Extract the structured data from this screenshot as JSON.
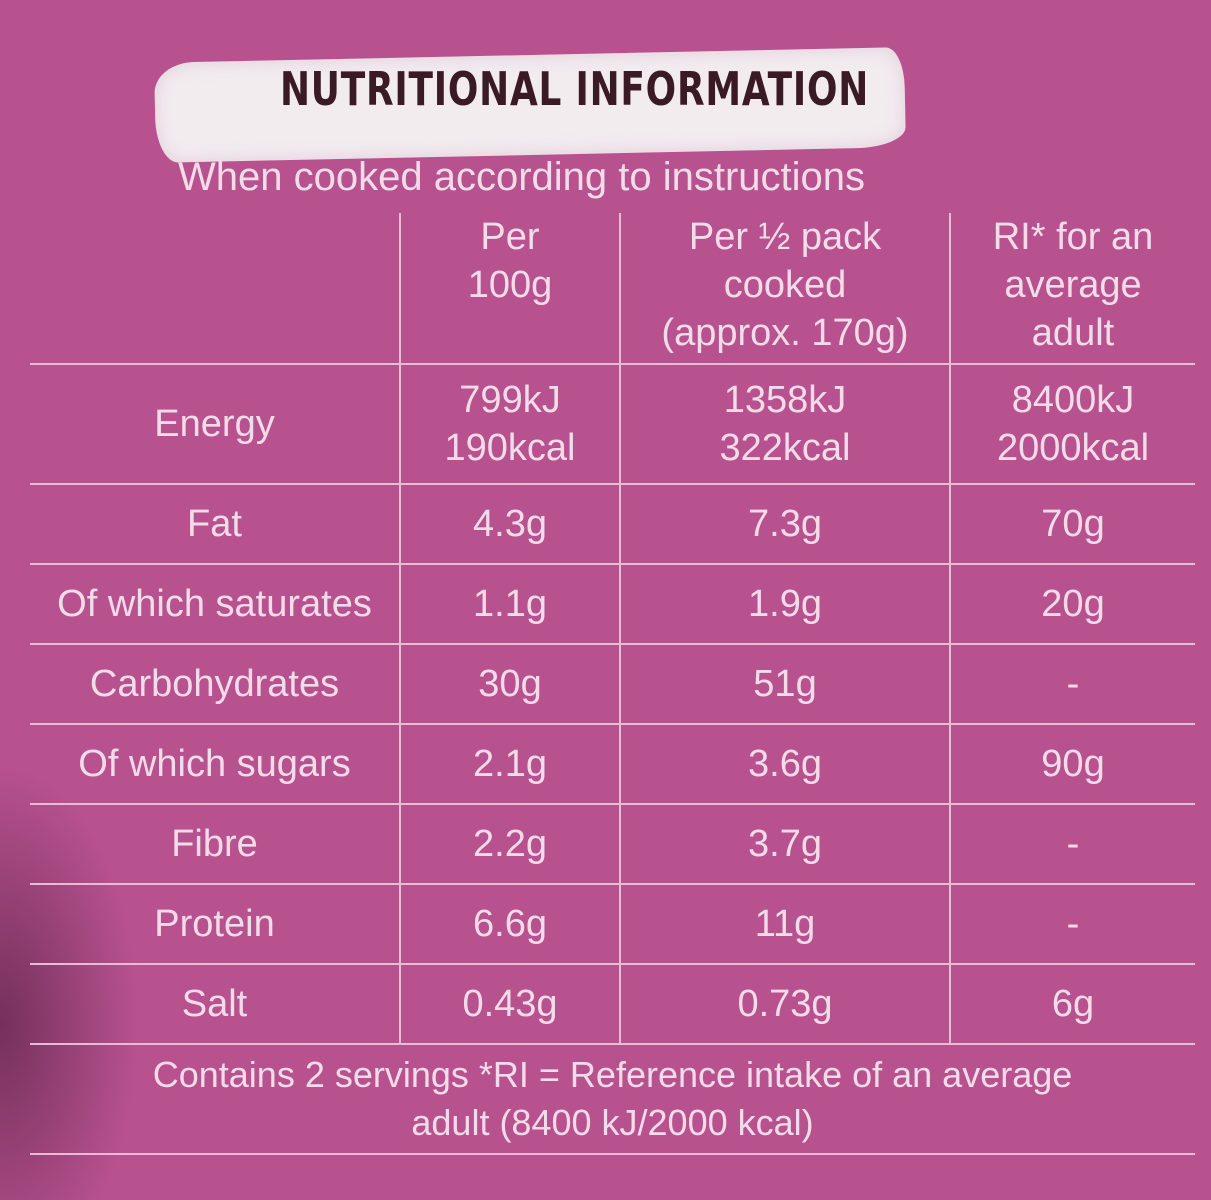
{
  "header": {
    "title": "NUTRITIONAL INFORMATION",
    "subtitle": "When cooked according to instructions"
  },
  "columns": [
    {
      "line1": "Per",
      "line2": "100g",
      "line3": ""
    },
    {
      "line1": "Per ½ pack",
      "line2": "cooked",
      "line3": "(approx. 170g)"
    },
    {
      "line1": "RI* for an",
      "line2": "average",
      "line3": "adult"
    }
  ],
  "energy": {
    "label": "Energy",
    "per100": {
      "kj": "799kJ",
      "kcal": "190kcal"
    },
    "perHalf": {
      "kj": "1358kJ",
      "kcal": "322kcal"
    },
    "ri": {
      "kj": "8400kJ",
      "kcal": "2000kcal"
    }
  },
  "rows": [
    {
      "label": "Fat",
      "per100": "4.3g",
      "perHalf": "7.3g",
      "ri": "70g"
    },
    {
      "label": "Of which saturates",
      "per100": "1.1g",
      "perHalf": "1.9g",
      "ri": "20g"
    },
    {
      "label": "Carbohydrates",
      "per100": "30g",
      "perHalf": "51g",
      "ri": "-"
    },
    {
      "label": "Of which sugars",
      "per100": "2.1g",
      "perHalf": "3.6g",
      "ri": "90g"
    },
    {
      "label": "Fibre",
      "per100": "2.2g",
      "perHalf": "3.7g",
      "ri": "-"
    },
    {
      "label": "Protein",
      "per100": "6.6g",
      "perHalf": "11g",
      "ri": "-"
    },
    {
      "label": "Salt",
      "per100": "0.43g",
      "perHalf": "0.73g",
      "ri": "6g"
    }
  ],
  "footer": {
    "line1": "Contains 2 servings *RI = Reference intake of an average",
    "line2": "adult (8400 kJ/2000 kcal)"
  },
  "colors": {
    "background": "#b8528f",
    "text": "#f3dcea",
    "title": "#3a1a24",
    "brush": "#f2ecef"
  }
}
